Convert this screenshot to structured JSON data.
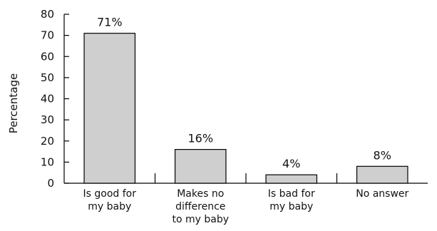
{
  "chart_data": {
    "type": "bar",
    "ylabel": "Percentage",
    "xlabel": "",
    "ylim": [
      0,
      80
    ],
    "yticks": [
      0,
      10,
      20,
      30,
      40,
      50,
      60,
      70,
      80
    ],
    "categories": [
      [
        "Is good for",
        "my baby"
      ],
      [
        "Makes no",
        "difference",
        "to my baby"
      ],
      [
        "Is bad for",
        "my baby"
      ],
      [
        "No answer"
      ]
    ],
    "values": [
      71,
      16,
      4,
      8
    ],
    "data_labels": [
      "71%",
      "16%",
      "4%",
      "8%"
    ],
    "bar_color": "#cfcfcf"
  }
}
